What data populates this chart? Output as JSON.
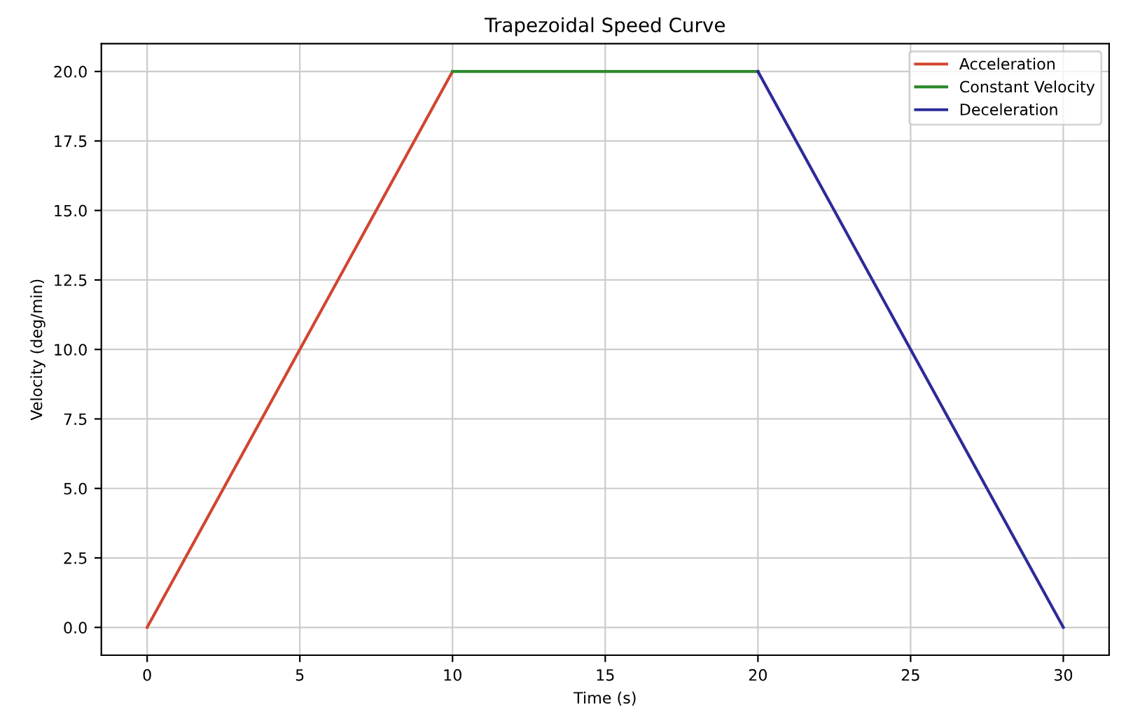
{
  "chart_data": {
    "type": "line",
    "title": "Trapezoidal Speed Curve",
    "xlabel": "Time (s)",
    "ylabel": "Velocity (deg/min)",
    "series": [
      {
        "name": "Acceleration",
        "color": "#d2452f",
        "x": [
          0,
          10
        ],
        "values": [
          0,
          20
        ]
      },
      {
        "name": "Constant Velocity",
        "color": "#2e8b2e",
        "x": [
          10,
          20
        ],
        "values": [
          20,
          20
        ]
      },
      {
        "name": "Deceleration",
        "color": "#2b2b9a",
        "x": [
          20,
          30
        ],
        "values": [
          20,
          0
        ]
      }
    ],
    "xlim": [
      -1.5,
      31.5
    ],
    "ylim": [
      -1,
      21
    ],
    "xticks": [
      0,
      5,
      10,
      15,
      20,
      25,
      30
    ],
    "yticks": [
      {
        "value": 0,
        "label": "0.0"
      },
      {
        "value": 2.5,
        "label": "2.5"
      },
      {
        "value": 5,
        "label": "5.0"
      },
      {
        "value": 7.5,
        "label": "7.5"
      },
      {
        "value": 10,
        "label": "10.0"
      },
      {
        "value": 12.5,
        "label": "12.5"
      },
      {
        "value": 15,
        "label": "15.0"
      },
      {
        "value": 17.5,
        "label": "17.5"
      },
      {
        "value": 20,
        "label": "20.0"
      }
    ],
    "grid": true,
    "legend": "top right",
    "marker": "none",
    "line_style": "solid"
  }
}
